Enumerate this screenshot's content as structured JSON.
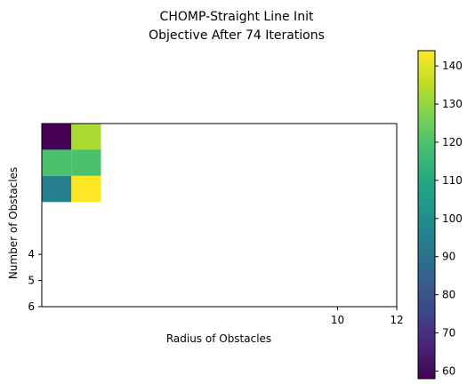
{
  "chart_data": {
    "type": "heatmap",
    "title_line1": "CHOMP-Straight Line Init",
    "title_line2": "Objective After 74 Iterations",
    "xlabel": "Radius of Obstacles",
    "ylabel": "Number of Obstacles",
    "x_ticks": [
      {
        "value": 10,
        "label": "10"
      },
      {
        "value": 12,
        "label": "12"
      }
    ],
    "y_ticks": [
      {
        "value": 4,
        "label": "4"
      },
      {
        "value": 5,
        "label": "5"
      },
      {
        "value": 6,
        "label": "6"
      }
    ],
    "xlim": [
      0,
      12
    ],
    "ylim": [
      6,
      -1
    ],
    "cells": [
      {
        "row": 0,
        "col": 0,
        "value": 58
      },
      {
        "row": 0,
        "col": 1,
        "value": 133
      },
      {
        "row": 1,
        "col": 0,
        "value": 119
      },
      {
        "row": 1,
        "col": 1,
        "value": 119
      },
      {
        "row": 2,
        "col": 0,
        "value": 95
      },
      {
        "row": 2,
        "col": 1,
        "value": 144
      }
    ],
    "colorbar": {
      "colormap": "viridis",
      "range": [
        58,
        144
      ],
      "ticks": [
        60,
        70,
        80,
        90,
        100,
        110,
        120,
        130,
        140
      ]
    }
  }
}
